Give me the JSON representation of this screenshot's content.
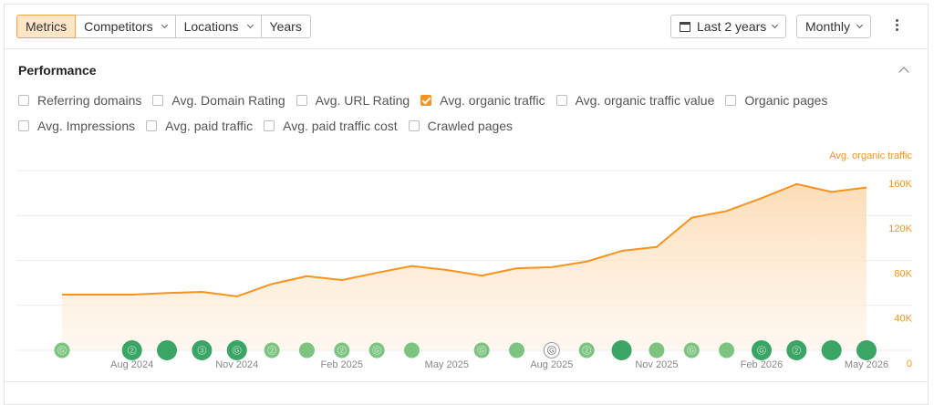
{
  "toolbar": {
    "tabs": [
      "Metrics",
      "Competitors",
      "Locations",
      "Years"
    ],
    "date_range": "Last 2 years",
    "interval": "Monthly"
  },
  "section": {
    "title": "Performance"
  },
  "metrics": [
    {
      "label": "Referring domains",
      "checked": false
    },
    {
      "label": "Avg. Domain Rating",
      "checked": false
    },
    {
      "label": "Avg. URL Rating",
      "checked": false
    },
    {
      "label": "Avg. organic traffic",
      "checked": true
    },
    {
      "label": "Avg. organic traffic value",
      "checked": false
    },
    {
      "label": "Organic pages",
      "checked": false
    },
    {
      "label": "Avg. Impressions",
      "checked": false
    },
    {
      "label": "Avg. paid traffic",
      "checked": false
    },
    {
      "label": "Avg. paid traffic cost",
      "checked": false
    },
    {
      "label": "Crawled pages",
      "checked": false
    }
  ],
  "chart_data": {
    "type": "area",
    "x": [
      "Jun 2024",
      "Jul 2024",
      "Aug 2024",
      "Sep 2024",
      "Oct 2024",
      "Nov 2024",
      "Dec 2024",
      "Jan 2025",
      "Feb 2025",
      "Mar 2025",
      "Apr 2025",
      "May 2025",
      "Jun 2025",
      "Jul 2025",
      "Aug 2025",
      "Sep 2025",
      "Oct 2025",
      "Nov 2025",
      "Dec 2025",
      "Jan 2026",
      "Feb 2026",
      "Mar 2026",
      "Apr 2026",
      "May 2026"
    ],
    "xticks": [
      "Aug 2024",
      "Nov 2024",
      "Feb 2025",
      "May 2025",
      "Aug 2025",
      "Nov 2025",
      "Feb 2026",
      "May 2026"
    ],
    "series": [
      {
        "name": "Avg. organic traffic",
        "color": "#f7931e",
        "values": [
          49500,
          49500,
          49500,
          51000,
          52000,
          48000,
          59000,
          66000,
          62500,
          69000,
          75000,
          71500,
          66500,
          73000,
          74000,
          79000,
          88500,
          92000,
          118000,
          124000,
          135500,
          148000,
          141000,
          145000
        ]
      }
    ],
    "ylim": [
      0,
      160000
    ],
    "yticks": [
      0,
      {
        "value": 40000,
        "label": "40K"
      },
      {
        "value": 80000,
        "label": "80K"
      },
      {
        "value": 120000,
        "label": "120K"
      },
      {
        "value": 160000,
        "label": "160K"
      }
    ],
    "grid": true,
    "annotations": [
      {
        "x": "Jun 2024",
        "label": "G",
        "color": "#7cc47f",
        "major": false
      },
      {
        "x": "Aug 2024",
        "label": "2",
        "color": "#3aa564",
        "major": true
      },
      {
        "x": "Sep 2024",
        "label": null,
        "color": "#3aa564",
        "major": true
      },
      {
        "x": "Oct 2024",
        "label": "3",
        "color": "#3aa564",
        "major": true
      },
      {
        "x": "Nov 2024",
        "label": "G",
        "color": "#3aa564",
        "major": true
      },
      {
        "x": "Dec 2024",
        "label": "2",
        "color": "#7cc47f",
        "major": false
      },
      {
        "x": "Jan 2025",
        "label": null,
        "color": "#7cc47f",
        "major": false
      },
      {
        "x": "Feb 2025",
        "label": "2",
        "color": "#7cc47f",
        "major": false
      },
      {
        "x": "Mar 2025",
        "label": "G",
        "color": "#7cc47f",
        "major": false
      },
      {
        "x": "Apr 2025",
        "label": null,
        "color": "#7cc47f",
        "major": false
      },
      {
        "x": "Jun 2025",
        "label": "G",
        "color": "#7cc47f",
        "major": false
      },
      {
        "x": "Jul 2025",
        "label": null,
        "color": "#7cc47f",
        "major": false
      },
      {
        "x": "Aug 2025",
        "label": "G",
        "color": "#ffffff",
        "major": false
      },
      {
        "x": "Sep 2025",
        "label": "2",
        "color": "#7cc47f",
        "major": false
      },
      {
        "x": "Oct 2025",
        "label": null,
        "color": "#3aa564",
        "major": true
      },
      {
        "x": "Nov 2025",
        "label": null,
        "color": "#7cc47f",
        "major": false
      },
      {
        "x": "Dec 2025",
        "label": "G",
        "color": "#7cc47f",
        "major": false
      },
      {
        "x": "Jan 2026",
        "label": null,
        "color": "#7cc47f",
        "major": false
      },
      {
        "x": "Feb 2026",
        "label": "G",
        "color": "#3aa564",
        "major": true
      },
      {
        "x": "Mar 2026",
        "label": "2",
        "color": "#3aa564",
        "major": true
      },
      {
        "x": "Apr 2026",
        "label": null,
        "color": "#3aa564",
        "major": true
      },
      {
        "x": "May 2026",
        "label": null,
        "color": "#3aa564",
        "major": true
      }
    ]
  }
}
